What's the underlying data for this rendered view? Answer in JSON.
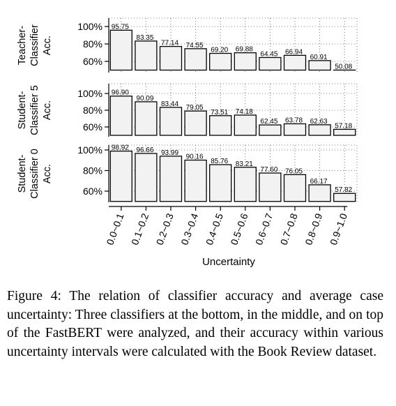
{
  "chart_data": {
    "type": "bar",
    "xlabel": "Uncertainty",
    "categories": [
      "0.0~0.1",
      "0.1~0.2",
      "0.2~0.3",
      "0.3~0.4",
      "0.4~0.5",
      "0.5~0.6",
      "0.6~0.7",
      "0.7~0.8",
      "0.8~0.9",
      "0.9~1.0"
    ],
    "ylim": [
      50,
      100
    ],
    "yticks": [
      "100%",
      "80%",
      "60%"
    ],
    "grid": true,
    "panels": [
      {
        "ylabel": [
          "Teacher-",
          "Classifier",
          "Acc."
        ],
        "values": [
          95.75,
          83.35,
          77.14,
          74.55,
          69.2,
          69.88,
          64.45,
          66.94,
          60.91,
          50.08
        ],
        "labels": [
          "95.75",
          "83.35",
          "77.14",
          "74.55",
          "69.20",
          "69.88",
          "64.45",
          "66.94",
          "60.91",
          "50.08"
        ]
      },
      {
        "ylabel": [
          "Student-",
          "Classifier 5",
          "Acc."
        ],
        "values": [
          96.9,
          90.09,
          83.44,
          79.05,
          73.51,
          74.18,
          62.45,
          63.78,
          62.63,
          57.18
        ],
        "labels": [
          "96.90",
          "90.09",
          "83.44",
          "79.05",
          "73.51",
          "74.18",
          "62.45",
          "63.78",
          "62.63",
          "57.18"
        ]
      },
      {
        "ylabel": [
          "Student-",
          "Classifier 0",
          "Acc."
        ],
        "values": [
          98.92,
          96.66,
          93.99,
          90.16,
          85.76,
          83.21,
          77.6,
          76.05,
          66.17,
          57.82
        ],
        "labels": [
          "98.92",
          "96.66",
          "93.99",
          "90.16",
          "85.76",
          "83.21",
          "77.60",
          "76.05",
          "66.17",
          "57.82"
        ]
      }
    ]
  },
  "caption": "Figure 4: The relation of classifier accuracy and average case uncertainty: Three classifiers at the bottom, in the middle, and on top of the FastBERT were analyzed, and their accuracy within various uncertainty intervals were calculated with the Book Review dataset."
}
